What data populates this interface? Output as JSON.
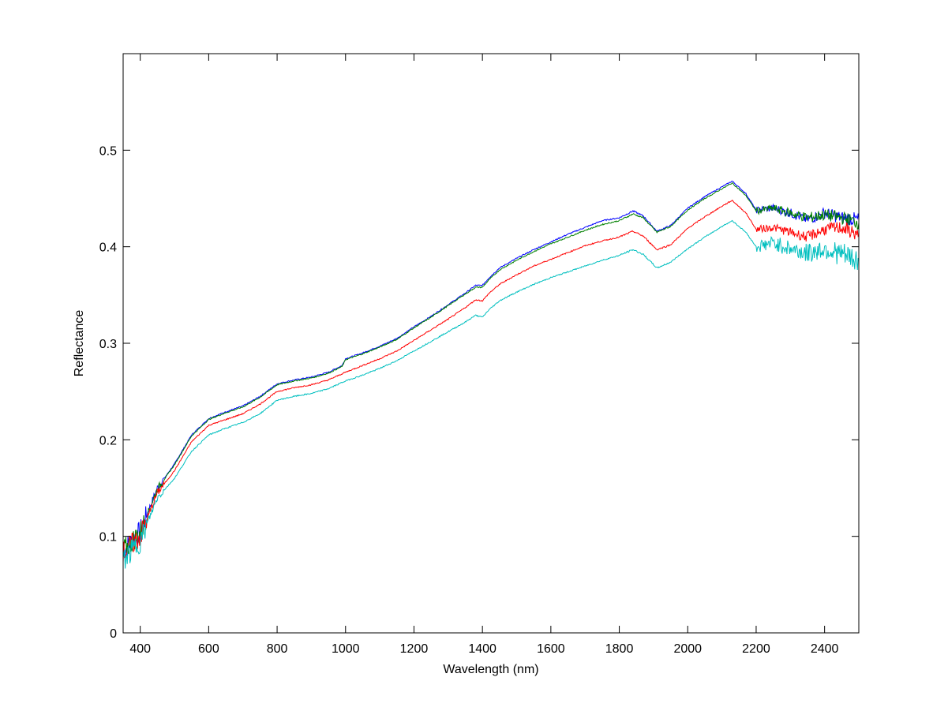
{
  "chart_data": {
    "type": "line",
    "xlabel": "Wavelength (nm)",
    "ylabel": "Reflectance",
    "xlim": [
      350,
      2500
    ],
    "ylim": [
      0,
      0.6
    ],
    "xticks": [
      400,
      600,
      800,
      1000,
      1200,
      1400,
      1600,
      1800,
      2000,
      2200,
      2400
    ],
    "yticks": [
      0,
      0.1,
      0.2,
      0.3,
      0.4,
      0.5
    ],
    "ytick_labels": [
      "0",
      "0.1",
      "0.2",
      "0.3",
      "0.4",
      "0.5"
    ],
    "grid": false,
    "legend": "none",
    "series_colors": [
      "#0000ff",
      "#008000",
      "#ff0000",
      "#00bfbf"
    ],
    "series": [
      {
        "color": "#0000ff",
        "points": [
          [
            350,
            0.085
          ],
          [
            400,
            0.105
          ],
          [
            450,
            0.15
          ],
          [
            500,
            0.175
          ],
          [
            550,
            0.205
          ],
          [
            600,
            0.222
          ],
          [
            650,
            0.229
          ],
          [
            700,
            0.235
          ],
          [
            750,
            0.245
          ],
          [
            800,
            0.258
          ],
          [
            850,
            0.262
          ],
          [
            900,
            0.265
          ],
          [
            950,
            0.27
          ],
          [
            990,
            0.277
          ],
          [
            1000,
            0.284
          ],
          [
            1050,
            0.29
          ],
          [
            1100,
            0.297
          ],
          [
            1150,
            0.305
          ],
          [
            1200,
            0.317
          ],
          [
            1250,
            0.328
          ],
          [
            1300,
            0.34
          ],
          [
            1350,
            0.352
          ],
          [
            1380,
            0.36
          ],
          [
            1400,
            0.36
          ],
          [
            1420,
            0.368
          ],
          [
            1450,
            0.378
          ],
          [
            1500,
            0.388
          ],
          [
            1550,
            0.397
          ],
          [
            1600,
            0.405
          ],
          [
            1650,
            0.413
          ],
          [
            1700,
            0.42
          ],
          [
            1750,
            0.427
          ],
          [
            1800,
            0.43
          ],
          [
            1840,
            0.437
          ],
          [
            1870,
            0.432
          ],
          [
            1910,
            0.416
          ],
          [
            1950,
            0.422
          ],
          [
            2000,
            0.44
          ],
          [
            2050,
            0.452
          ],
          [
            2100,
            0.462
          ],
          [
            2130,
            0.468
          ],
          [
            2170,
            0.455
          ],
          [
            2200,
            0.438
          ],
          [
            2250,
            0.44
          ],
          [
            2300,
            0.435
          ],
          [
            2350,
            0.428
          ],
          [
            2400,
            0.435
          ],
          [
            2450,
            0.43
          ],
          [
            2500,
            0.428
          ]
        ]
      },
      {
        "color": "#008000",
        "points": [
          [
            350,
            0.085
          ],
          [
            400,
            0.104
          ],
          [
            450,
            0.149
          ],
          [
            500,
            0.174
          ],
          [
            550,
            0.204
          ],
          [
            600,
            0.221
          ],
          [
            650,
            0.228
          ],
          [
            700,
            0.234
          ],
          [
            750,
            0.244
          ],
          [
            800,
            0.257
          ],
          [
            850,
            0.261
          ],
          [
            900,
            0.264
          ],
          [
            950,
            0.269
          ],
          [
            990,
            0.276
          ],
          [
            1000,
            0.283
          ],
          [
            1050,
            0.289
          ],
          [
            1100,
            0.296
          ],
          [
            1150,
            0.304
          ],
          [
            1200,
            0.316
          ],
          [
            1250,
            0.327
          ],
          [
            1300,
            0.339
          ],
          [
            1350,
            0.351
          ],
          [
            1380,
            0.358
          ],
          [
            1400,
            0.358
          ],
          [
            1420,
            0.366
          ],
          [
            1450,
            0.376
          ],
          [
            1500,
            0.386
          ],
          [
            1550,
            0.395
          ],
          [
            1600,
            0.403
          ],
          [
            1650,
            0.41
          ],
          [
            1700,
            0.417
          ],
          [
            1750,
            0.423
          ],
          [
            1800,
            0.427
          ],
          [
            1840,
            0.434
          ],
          [
            1870,
            0.43
          ],
          [
            1910,
            0.415
          ],
          [
            1950,
            0.421
          ],
          [
            2000,
            0.438
          ],
          [
            2050,
            0.45
          ],
          [
            2100,
            0.46
          ],
          [
            2130,
            0.466
          ],
          [
            2170,
            0.453
          ],
          [
            2200,
            0.437
          ],
          [
            2250,
            0.44
          ],
          [
            2300,
            0.435
          ],
          [
            2350,
            0.43
          ],
          [
            2400,
            0.433
          ],
          [
            2450,
            0.43
          ],
          [
            2500,
            0.425
          ]
        ]
      },
      {
        "color": "#ff0000",
        "points": [
          [
            350,
            0.083
          ],
          [
            400,
            0.1
          ],
          [
            450,
            0.145
          ],
          [
            500,
            0.168
          ],
          [
            550,
            0.198
          ],
          [
            600,
            0.215
          ],
          [
            650,
            0.221
          ],
          [
            700,
            0.227
          ],
          [
            750,
            0.237
          ],
          [
            800,
            0.25
          ],
          [
            850,
            0.254
          ],
          [
            900,
            0.257
          ],
          [
            950,
            0.262
          ],
          [
            1000,
            0.27
          ],
          [
            1050,
            0.277
          ],
          [
            1100,
            0.284
          ],
          [
            1150,
            0.292
          ],
          [
            1200,
            0.303
          ],
          [
            1250,
            0.314
          ],
          [
            1300,
            0.325
          ],
          [
            1350,
            0.337
          ],
          [
            1380,
            0.345
          ],
          [
            1400,
            0.344
          ],
          [
            1420,
            0.352
          ],
          [
            1450,
            0.361
          ],
          [
            1500,
            0.371
          ],
          [
            1550,
            0.38
          ],
          [
            1600,
            0.387
          ],
          [
            1650,
            0.394
          ],
          [
            1700,
            0.401
          ],
          [
            1750,
            0.406
          ],
          [
            1800,
            0.41
          ],
          [
            1840,
            0.416
          ],
          [
            1870,
            0.411
          ],
          [
            1910,
            0.397
          ],
          [
            1950,
            0.402
          ],
          [
            2000,
            0.419
          ],
          [
            2050,
            0.431
          ],
          [
            2100,
            0.442
          ],
          [
            2130,
            0.448
          ],
          [
            2170,
            0.435
          ],
          [
            2200,
            0.418
          ],
          [
            2250,
            0.42
          ],
          [
            2300,
            0.415
          ],
          [
            2350,
            0.41
          ],
          [
            2400,
            0.418
          ],
          [
            2450,
            0.42
          ],
          [
            2500,
            0.412
          ]
        ]
      },
      {
        "color": "#00bfbf",
        "points": [
          [
            350,
            0.075
          ],
          [
            400,
            0.095
          ],
          [
            450,
            0.14
          ],
          [
            500,
            0.16
          ],
          [
            550,
            0.188
          ],
          [
            600,
            0.205
          ],
          [
            650,
            0.212
          ],
          [
            700,
            0.218
          ],
          [
            750,
            0.227
          ],
          [
            800,
            0.241
          ],
          [
            850,
            0.245
          ],
          [
            900,
            0.248
          ],
          [
            950,
            0.253
          ],
          [
            1000,
            0.261
          ],
          [
            1050,
            0.267
          ],
          [
            1100,
            0.274
          ],
          [
            1150,
            0.282
          ],
          [
            1200,
            0.292
          ],
          [
            1250,
            0.302
          ],
          [
            1300,
            0.312
          ],
          [
            1350,
            0.322
          ],
          [
            1380,
            0.329
          ],
          [
            1400,
            0.327
          ],
          [
            1420,
            0.335
          ],
          [
            1450,
            0.344
          ],
          [
            1500,
            0.353
          ],
          [
            1550,
            0.361
          ],
          [
            1600,
            0.368
          ],
          [
            1650,
            0.374
          ],
          [
            1700,
            0.38
          ],
          [
            1750,
            0.386
          ],
          [
            1800,
            0.391
          ],
          [
            1840,
            0.397
          ],
          [
            1870,
            0.392
          ],
          [
            1910,
            0.378
          ],
          [
            1950,
            0.384
          ],
          [
            2000,
            0.398
          ],
          [
            2050,
            0.41
          ],
          [
            2100,
            0.421
          ],
          [
            2130,
            0.427
          ],
          [
            2170,
            0.415
          ],
          [
            2200,
            0.4
          ],
          [
            2250,
            0.404
          ],
          [
            2300,
            0.398
          ],
          [
            2350,
            0.393
          ],
          [
            2400,
            0.398
          ],
          [
            2450,
            0.392
          ],
          [
            2500,
            0.385
          ]
        ]
      }
    ]
  }
}
